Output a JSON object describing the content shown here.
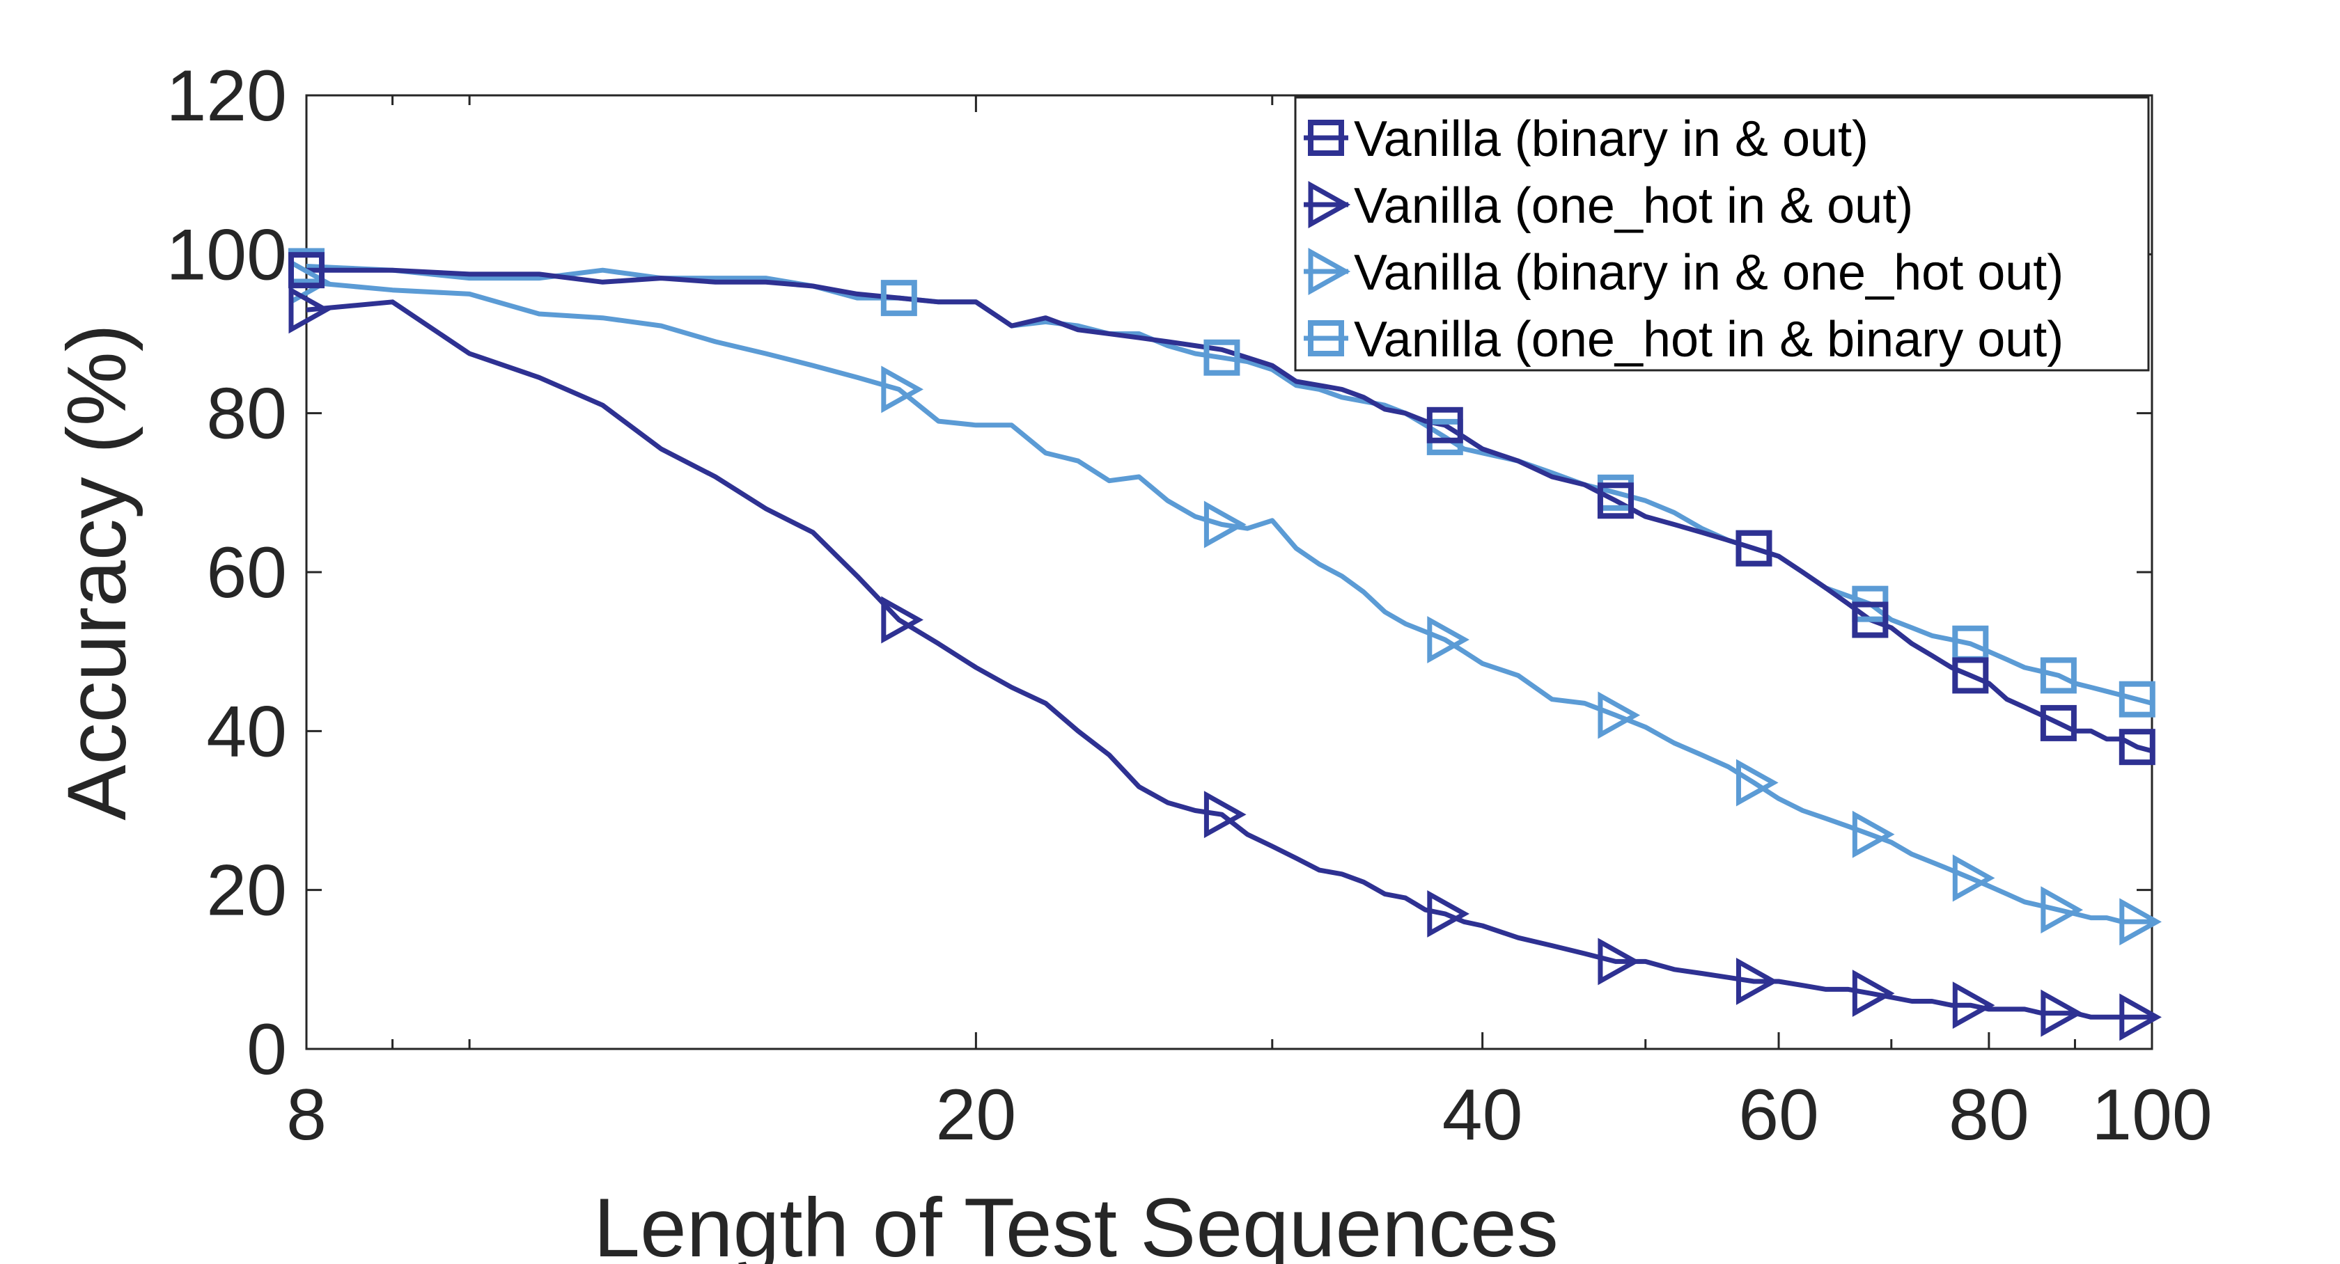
{
  "chart_data": {
    "type": "line",
    "xlabel": "Length of Test Sequences",
    "ylabel": "Accuracy (%)",
    "xscale": "log",
    "xlim": [
      8,
      100
    ],
    "ylim": [
      0,
      120
    ],
    "xticks": [
      8,
      20,
      40,
      60,
      80,
      100
    ],
    "yticks": [
      0,
      20,
      40,
      60,
      80,
      100,
      120
    ],
    "legend_position": "top-right",
    "series": [
      {
        "name": "Vanilla (binary in & out)",
        "color": "#2e3192",
        "marker": "square",
        "x": [
          8,
          9,
          10,
          11,
          12,
          13,
          14,
          15,
          16,
          17,
          18,
          19,
          20,
          21,
          22,
          23,
          24,
          25,
          26,
          27,
          28,
          29,
          30,
          31,
          32,
          33,
          34,
          35,
          36,
          37,
          38,
          39,
          40,
          42,
          44,
          46,
          48,
          50,
          52,
          54,
          56,
          58,
          60,
          62,
          64,
          66,
          68,
          70,
          72,
          74,
          76,
          78,
          80,
          82,
          84,
          86,
          88,
          90,
          92,
          94,
          96,
          98,
          100
        ],
        "values": [
          98,
          98,
          97.5,
          97.5,
          96.5,
          97,
          96.5,
          96.5,
          96,
          95,
          94.5,
          94,
          94,
          91,
          92,
          90.5,
          90,
          89.5,
          89,
          88.5,
          88,
          87,
          86,
          84,
          83.5,
          83,
          82,
          80.5,
          80,
          79,
          78.5,
          77,
          75.5,
          74,
          72,
          71,
          69,
          67,
          66,
          65,
          64,
          63,
          62,
          60,
          58,
          56,
          54,
          53,
          51,
          49.5,
          48,
          47,
          46,
          44,
          43,
          42,
          41,
          40,
          40,
          39,
          39,
          38,
          37.5
        ],
        "marker_x": [
          8,
          38,
          48,
          58,
          68,
          78,
          88,
          98
        ]
      },
      {
        "name": "Vanilla (one_hot in & out)",
        "color": "#2e3192",
        "marker": "triangle-right",
        "x": [
          8,
          9,
          10,
          11,
          12,
          13,
          14,
          15,
          16,
          17,
          18,
          19,
          20,
          21,
          22,
          23,
          24,
          25,
          26,
          27,
          28,
          29,
          30,
          31,
          32,
          33,
          34,
          35,
          36,
          37,
          38,
          39,
          40,
          42,
          44,
          46,
          48,
          50,
          52,
          54,
          56,
          58,
          60,
          62,
          64,
          66,
          68,
          70,
          72,
          74,
          76,
          78,
          80,
          82,
          84,
          86,
          88,
          90,
          92,
          94,
          96,
          98,
          100
        ],
        "values": [
          93,
          94,
          87.5,
          84.5,
          81,
          75.5,
          72,
          68,
          65,
          59.5,
          54,
          51,
          48,
          45.5,
          43.5,
          40,
          37,
          33,
          31,
          30,
          29.5,
          27,
          25.5,
          24,
          22.5,
          22,
          21,
          19.5,
          19,
          17.5,
          17,
          16,
          15.5,
          14,
          13,
          12,
          11,
          11,
          10,
          9.5,
          9,
          8.5,
          8.5,
          8,
          7.5,
          7.5,
          7,
          6.5,
          6,
          6,
          5.5,
          5.5,
          5,
          5,
          5,
          4.5,
          4.5,
          4.5,
          4,
          4,
          4,
          4,
          4
        ],
        "marker_x": [
          8,
          18,
          28,
          38,
          48,
          58,
          68,
          78,
          88,
          98
        ]
      },
      {
        "name": "Vanilla (binary in & one_hot out)",
        "color": "#5b9bd5",
        "marker": "triangle-right",
        "x": [
          8,
          9,
          10,
          11,
          12,
          13,
          14,
          15,
          16,
          17,
          18,
          19,
          20,
          21,
          22,
          23,
          24,
          25,
          26,
          27,
          28,
          29,
          30,
          31,
          32,
          33,
          34,
          35,
          36,
          37,
          38,
          39,
          40,
          42,
          44,
          46,
          48,
          50,
          52,
          54,
          56,
          58,
          60,
          62,
          64,
          66,
          68,
          70,
          72,
          74,
          76,
          78,
          80,
          82,
          84,
          86,
          88,
          90,
          92,
          94,
          96,
          98,
          100
        ],
        "values": [
          96.5,
          95.5,
          95,
          92.5,
          92,
          91,
          89,
          87.5,
          86,
          84.5,
          83,
          79,
          78.5,
          78.5,
          75,
          74,
          71.5,
          72,
          69,
          67,
          66,
          65.5,
          66.5,
          63,
          61,
          59.5,
          57.5,
          55,
          53.5,
          52.5,
          51.5,
          50,
          48.5,
          47,
          44,
          43.5,
          42,
          40.5,
          38.5,
          37,
          35.5,
          33.5,
          31.5,
          30,
          29,
          28,
          27,
          26,
          24.5,
          23.5,
          22.5,
          21.5,
          20.5,
          19.5,
          18.5,
          18,
          17.5,
          17,
          16.5,
          16.5,
          16,
          16,
          16
        ],
        "marker_x": [
          8,
          18,
          28,
          38,
          48,
          58,
          68,
          78,
          88,
          98
        ]
      },
      {
        "name": "Vanilla (one_hot in & binary out)",
        "color": "#5b9bd5",
        "marker": "square",
        "x": [
          8,
          9,
          10,
          11,
          12,
          13,
          14,
          15,
          16,
          17,
          18,
          19,
          20,
          21,
          22,
          23,
          24,
          25,
          26,
          27,
          28,
          29,
          30,
          31,
          32,
          33,
          34,
          35,
          36,
          37,
          38,
          39,
          40,
          42,
          44,
          46,
          48,
          50,
          52,
          54,
          56,
          58,
          60,
          62,
          64,
          66,
          68,
          70,
          72,
          74,
          76,
          78,
          80,
          82,
          84,
          86,
          88,
          90,
          92,
          94,
          96,
          98,
          100
        ],
        "values": [
          98.5,
          98,
          97,
          97,
          98,
          97,
          97,
          97,
          96,
          94.5,
          94.5,
          94,
          94,
          91,
          91.5,
          91,
          90,
          90,
          88.5,
          87.5,
          87,
          86.5,
          85.5,
          83.5,
          83,
          82,
          81.5,
          81,
          80,
          78.5,
          77,
          75.5,
          75,
          74,
          72.5,
          71,
          70,
          69,
          67.5,
          65.5,
          64,
          63,
          62,
          60,
          58,
          57,
          56,
          54,
          53,
          52,
          51.5,
          51,
          50,
          49,
          48,
          47.5,
          47,
          46,
          45.5,
          45,
          44.5,
          44,
          43.5
        ],
        "marker_x": [
          8,
          18,
          28,
          38,
          48,
          58,
          68,
          78,
          88,
          98
        ]
      }
    ]
  }
}
